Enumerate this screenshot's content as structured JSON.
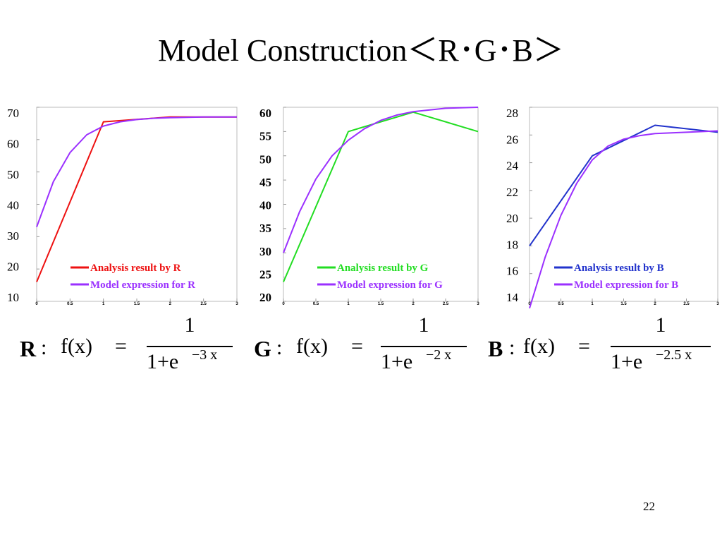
{
  "title": "Model Construction＜R･G･B＞",
  "page_number": "22",
  "formulas": [
    {
      "channel": "R",
      "colon": ":",
      "fx": "f(x)",
      "eq": "=",
      "numerator": "1",
      "denominator": "1+e",
      "exponent": "−3 x"
    },
    {
      "channel": "G",
      "colon": ":",
      "fx": "f(x)",
      "eq": "=",
      "numerator": "1",
      "denominator": "1+e",
      "exponent": "−2 x"
    },
    {
      "channel": "B",
      "colon": ":",
      "fx": "f(x)",
      "eq": "=",
      "numerator": "1",
      "denominator": "1+e",
      "exponent": "−2.5 x"
    }
  ],
  "chart_data": [
    {
      "type": "line",
      "xlim": [
        0,
        3
      ],
      "ylim": [
        10,
        70
      ],
      "x_ticks": [
        "0",
        "0.5",
        "1",
        "1.5",
        "2",
        "2.5",
        "3"
      ],
      "y_ticks": [
        "70",
        "60",
        "50",
        "40",
        "30",
        "20",
        "10"
      ],
      "y_tick_values": [
        70,
        60,
        50,
        40,
        30,
        20,
        10
      ],
      "legend_position": "bottom-right",
      "series": [
        {
          "name": "Analysis result by R",
          "color": "#ee1111",
          "x": [
            0,
            1,
            2,
            3
          ],
          "y": [
            16,
            65.5,
            67,
            67
          ]
        },
        {
          "name": "Model expression for R",
          "color": "#9b30ff",
          "x": [
            0,
            0.25,
            0.5,
            0.75,
            1,
            1.25,
            1.5,
            1.75,
            2,
            2.5,
            3
          ],
          "y": [
            33,
            47,
            56,
            61.5,
            64.2,
            65.5,
            66.2,
            66.6,
            66.8,
            67,
            67
          ]
        }
      ]
    },
    {
      "type": "line",
      "xlim": [
        0,
        3
      ],
      "ylim": [
        20,
        60
      ],
      "x_ticks": [
        "0",
        "0.5",
        "1",
        "1.5",
        "2",
        "2.5",
        "3"
      ],
      "y_ticks": [
        "60",
        "55",
        "50",
        "45",
        "40",
        "35",
        "30",
        "25",
        "20"
      ],
      "y_tick_values": [
        60,
        55,
        50,
        45,
        40,
        35,
        30,
        25,
        20
      ],
      "legend_position": "bottom-right",
      "series": [
        {
          "name": "Analysis result by G",
          "color": "#22dd22",
          "x": [
            0,
            1,
            2,
            3
          ],
          "y": [
            24,
            55,
            59,
            55
          ]
        },
        {
          "name": "Model expression for G",
          "color": "#9b30ff",
          "x": [
            0,
            0.25,
            0.5,
            0.75,
            1,
            1.25,
            1.5,
            1.75,
            2,
            2.5,
            3
          ],
          "y": [
            30,
            38.5,
            45.2,
            50,
            53.2,
            55.6,
            57.3,
            58.4,
            59.1,
            59.8,
            60
          ]
        }
      ]
    },
    {
      "type": "line",
      "xlim": [
        0,
        3
      ],
      "ylim": [
        14,
        28
      ],
      "x_ticks": [
        "0",
        "0.5",
        "1",
        "1.5",
        "2",
        "2.5",
        "3"
      ],
      "y_ticks": [
        "28",
        "26",
        "24",
        "22",
        "20",
        "18",
        "16",
        "14"
      ],
      "y_tick_values": [
        28,
        26,
        24,
        22,
        20,
        18,
        16,
        14
      ],
      "legend_position": "bottom-right",
      "series": [
        {
          "name": "Analysis result by B",
          "color": "#2233cc",
          "x": [
            0,
            1,
            2,
            3
          ],
          "y": [
            18,
            24.5,
            26.7,
            26.2
          ]
        },
        {
          "name": "Model expression for B",
          "color": "#9b30ff",
          "x": [
            0,
            0.25,
            0.5,
            0.75,
            1,
            1.25,
            1.5,
            1.75,
            2,
            2.5,
            3
          ],
          "y": [
            13.5,
            17.2,
            20.2,
            22.5,
            24.2,
            25.2,
            25.7,
            25.95,
            26.1,
            26.2,
            26.3
          ]
        }
      ]
    }
  ]
}
